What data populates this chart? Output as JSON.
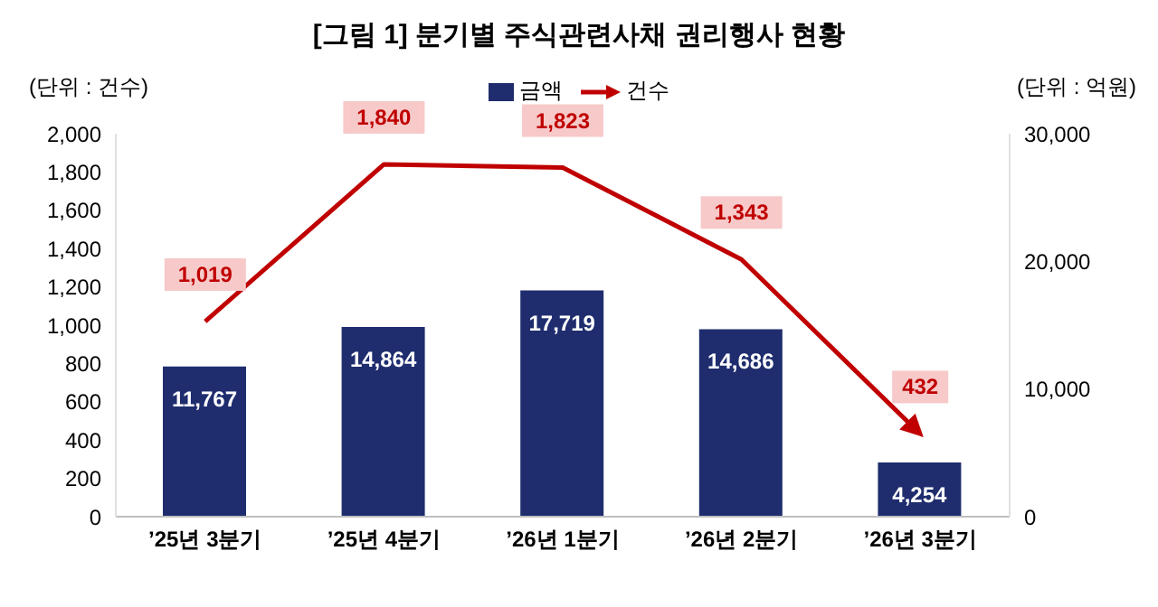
{
  "chart_data": {
    "type": "bar",
    "title": "[그림 1] 분기별 주식관련사채 권리행사 현황",
    "ylabel": "(단위 : 건수)",
    "y2label": "(단위 : 억원)",
    "categories": [
      "’25년 3분기",
      "’25년 4분기",
      "’26년 1분기",
      "’26년 2분기",
      "’26년 3분기"
    ],
    "series": [
      {
        "name": "금액",
        "axis": "y2",
        "color": "#1f2d6e",
        "values": [
          11767,
          14864,
          17719,
          14686,
          4254
        ],
        "value_labels": [
          "11,767",
          "14,864",
          "17,719",
          "14,686",
          "4,254"
        ]
      },
      {
        "name": "건수",
        "type": "line",
        "color": "#c00000",
        "values": [
          1019,
          1840,
          1823,
          1343,
          432
        ],
        "value_labels": [
          "1,019",
          "1,840",
          "1,823",
          "1,343",
          "432"
        ]
      }
    ],
    "ylim": [
      0,
      2000
    ],
    "yticks": [
      0,
      200,
      400,
      600,
      800,
      {
        "value": 1000,
        "label": "1,000"
      },
      {
        "value": 1200,
        "label": "1,200"
      },
      {
        "value": 1400,
        "label": "1,400"
      },
      {
        "value": 1600,
        "label": "1,600"
      },
      {
        "value": 1800,
        "label": "1,800"
      },
      {
        "value": 2000,
        "label": "2,000"
      }
    ],
    "y2lim": [
      0,
      30000
    ],
    "y2ticks": [
      0,
      {
        "value": 10000,
        "label": "10,000"
      },
      {
        "value": 20000,
        "label": "20,000"
      },
      {
        "value": 30000,
        "label": "30,000"
      }
    ],
    "legend": "top",
    "marker": "none",
    "grid": false
  }
}
